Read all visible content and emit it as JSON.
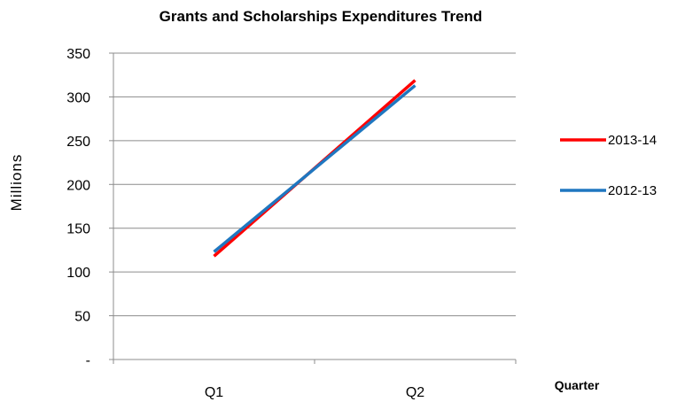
{
  "chart_data": {
    "type": "line",
    "title": "Grants and Scholarships  Expenditures Trend",
    "xlabel": "Quarter",
    "ylabel": "Millions",
    "categories": [
      "Q1",
      "Q2"
    ],
    "ylim": [
      0,
      350
    ],
    "yticks": [
      0,
      50,
      100,
      150,
      200,
      250,
      300,
      350
    ],
    "ytick_labels": [
      "-",
      "50",
      "100",
      "150",
      "200",
      "250",
      "300",
      "350"
    ],
    "grid": true,
    "legend_position": "right",
    "series": [
      {
        "name": "2013-14",
        "values": [
          118,
          319
        ],
        "color": "#ff0000"
      },
      {
        "name": "2012-13",
        "values": [
          123,
          313
        ],
        "color": "#1f77c0"
      }
    ]
  }
}
